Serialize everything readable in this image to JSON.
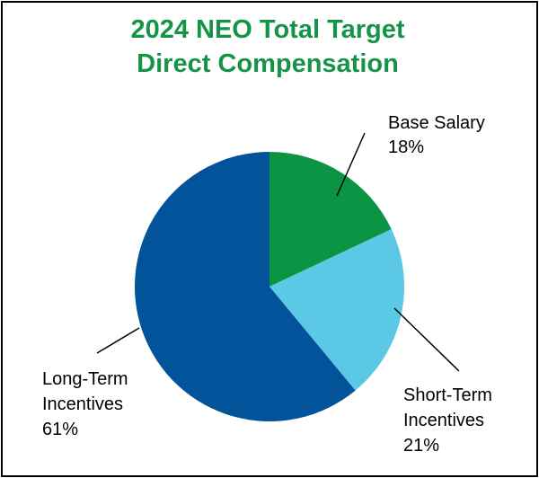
{
  "chart_data": {
    "type": "pie",
    "title_lines": [
      "2024 NEO Total Target",
      "Direct Compensation"
    ],
    "slices": [
      {
        "label_lines": [
          "Base Salary"
        ],
        "value": 18,
        "value_label": "18%",
        "color": "#0a9444"
      },
      {
        "label_lines": [
          "Short-Term",
          "Incentives"
        ],
        "value": 21,
        "value_label": "21%",
        "color": "#5bc9e6"
      },
      {
        "label_lines": [
          "Long-Term",
          "Incentives"
        ],
        "value": 61,
        "value_label": "61%",
        "color": "#02539a"
      }
    ],
    "start_angle": "12 o'clock",
    "direction": "clockwise",
    "legend": "none",
    "colors": {
      "title": "#159447",
      "border": "#000000",
      "leader": "#000000"
    }
  }
}
